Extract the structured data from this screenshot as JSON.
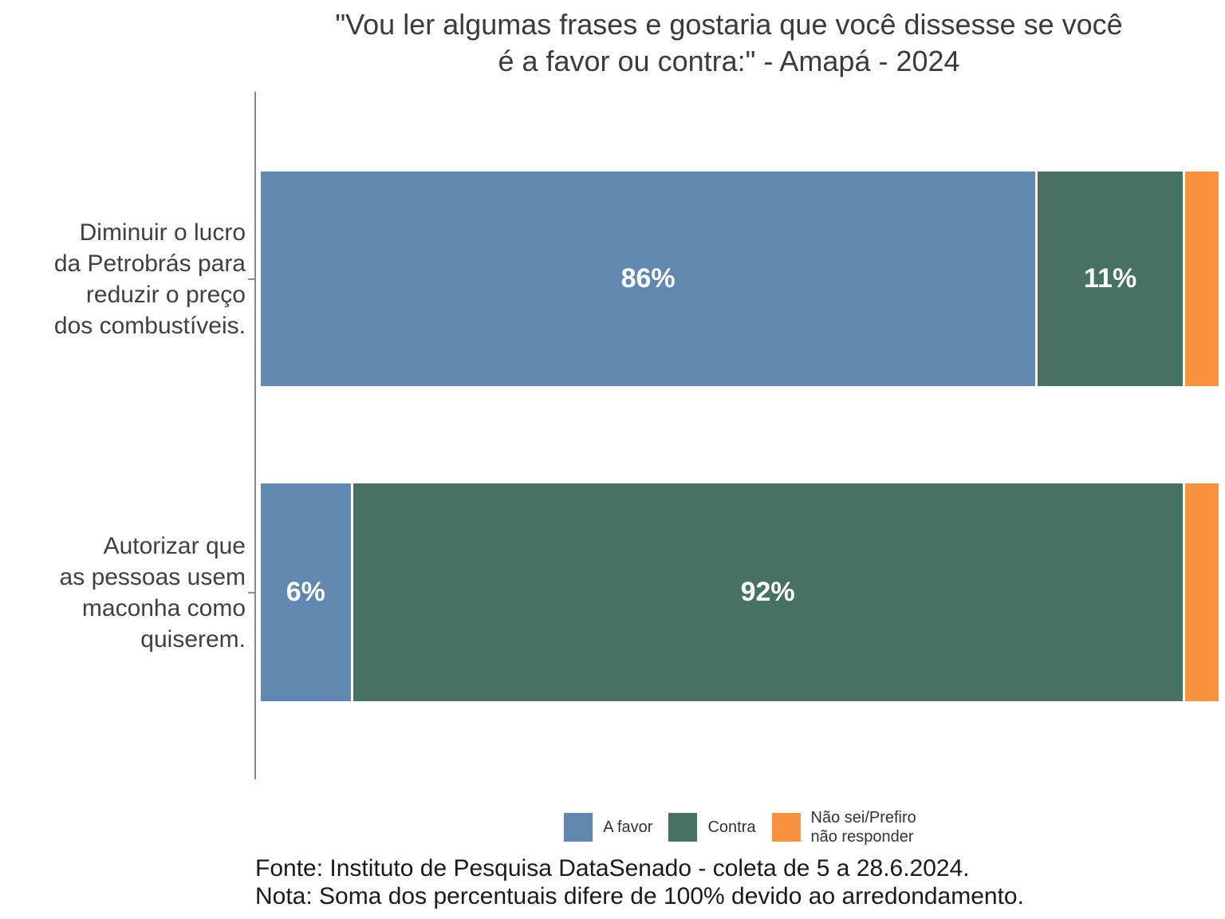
{
  "title": {
    "text": "\"Vou ler algumas frases e gostaria que você dissesse se você\né a favor ou contra:\" - Amapá - 2024"
  },
  "chart_data": {
    "type": "bar",
    "orientation": "horizontal",
    "stacked": true,
    "normalized_to_100": true,
    "title": "\"Vou ler algumas frases e gostaria que você dissesse se você é a favor ou contra:\" - Amapá - 2024",
    "categories": [
      "Diminuir o lucro da Petrobrás para reduzir o preço dos combustíveis.",
      "Autorizar que as pessoas usem maconha como quiserem."
    ],
    "categories_display": [
      "Diminuir o lucro\nda Petrobrás para\nreduzir o preço\ndos combustíveis.",
      "Autorizar que\nas pessoas usem\nmaconha como\nquiserem."
    ],
    "series": [
      {
        "name": "A favor",
        "slug": "a-favor",
        "color": "#6288b2",
        "values": [
          86,
          6
        ]
      },
      {
        "name": "Contra",
        "slug": "contra",
        "color": "#467163",
        "values": [
          11,
          92
        ]
      },
      {
        "name": "Não sei/Prefiro não responder",
        "slug": "nao-sei-prefiro-nao-responder",
        "color": "#f9923e",
        "values": [
          4,
          4
        ]
      }
    ],
    "bar_value_labels": [
      [
        "86%",
        "11%",
        ""
      ],
      [
        "6%",
        "92%",
        ""
      ]
    ],
    "legend_position": "bottom",
    "x_axis_shown": false
  },
  "legend": {
    "items": [
      {
        "label": "A favor"
      },
      {
        "label": "Contra"
      },
      {
        "label": "Não sei/Prefiro\nnão responder"
      }
    ]
  },
  "footer": {
    "source": "Fonte: Instituto de Pesquisa DataSenado - coleta de 5 a 28.6.2024.",
    "note": "Nota: Soma dos percentuais difere de 100% devido ao arredondamento."
  }
}
